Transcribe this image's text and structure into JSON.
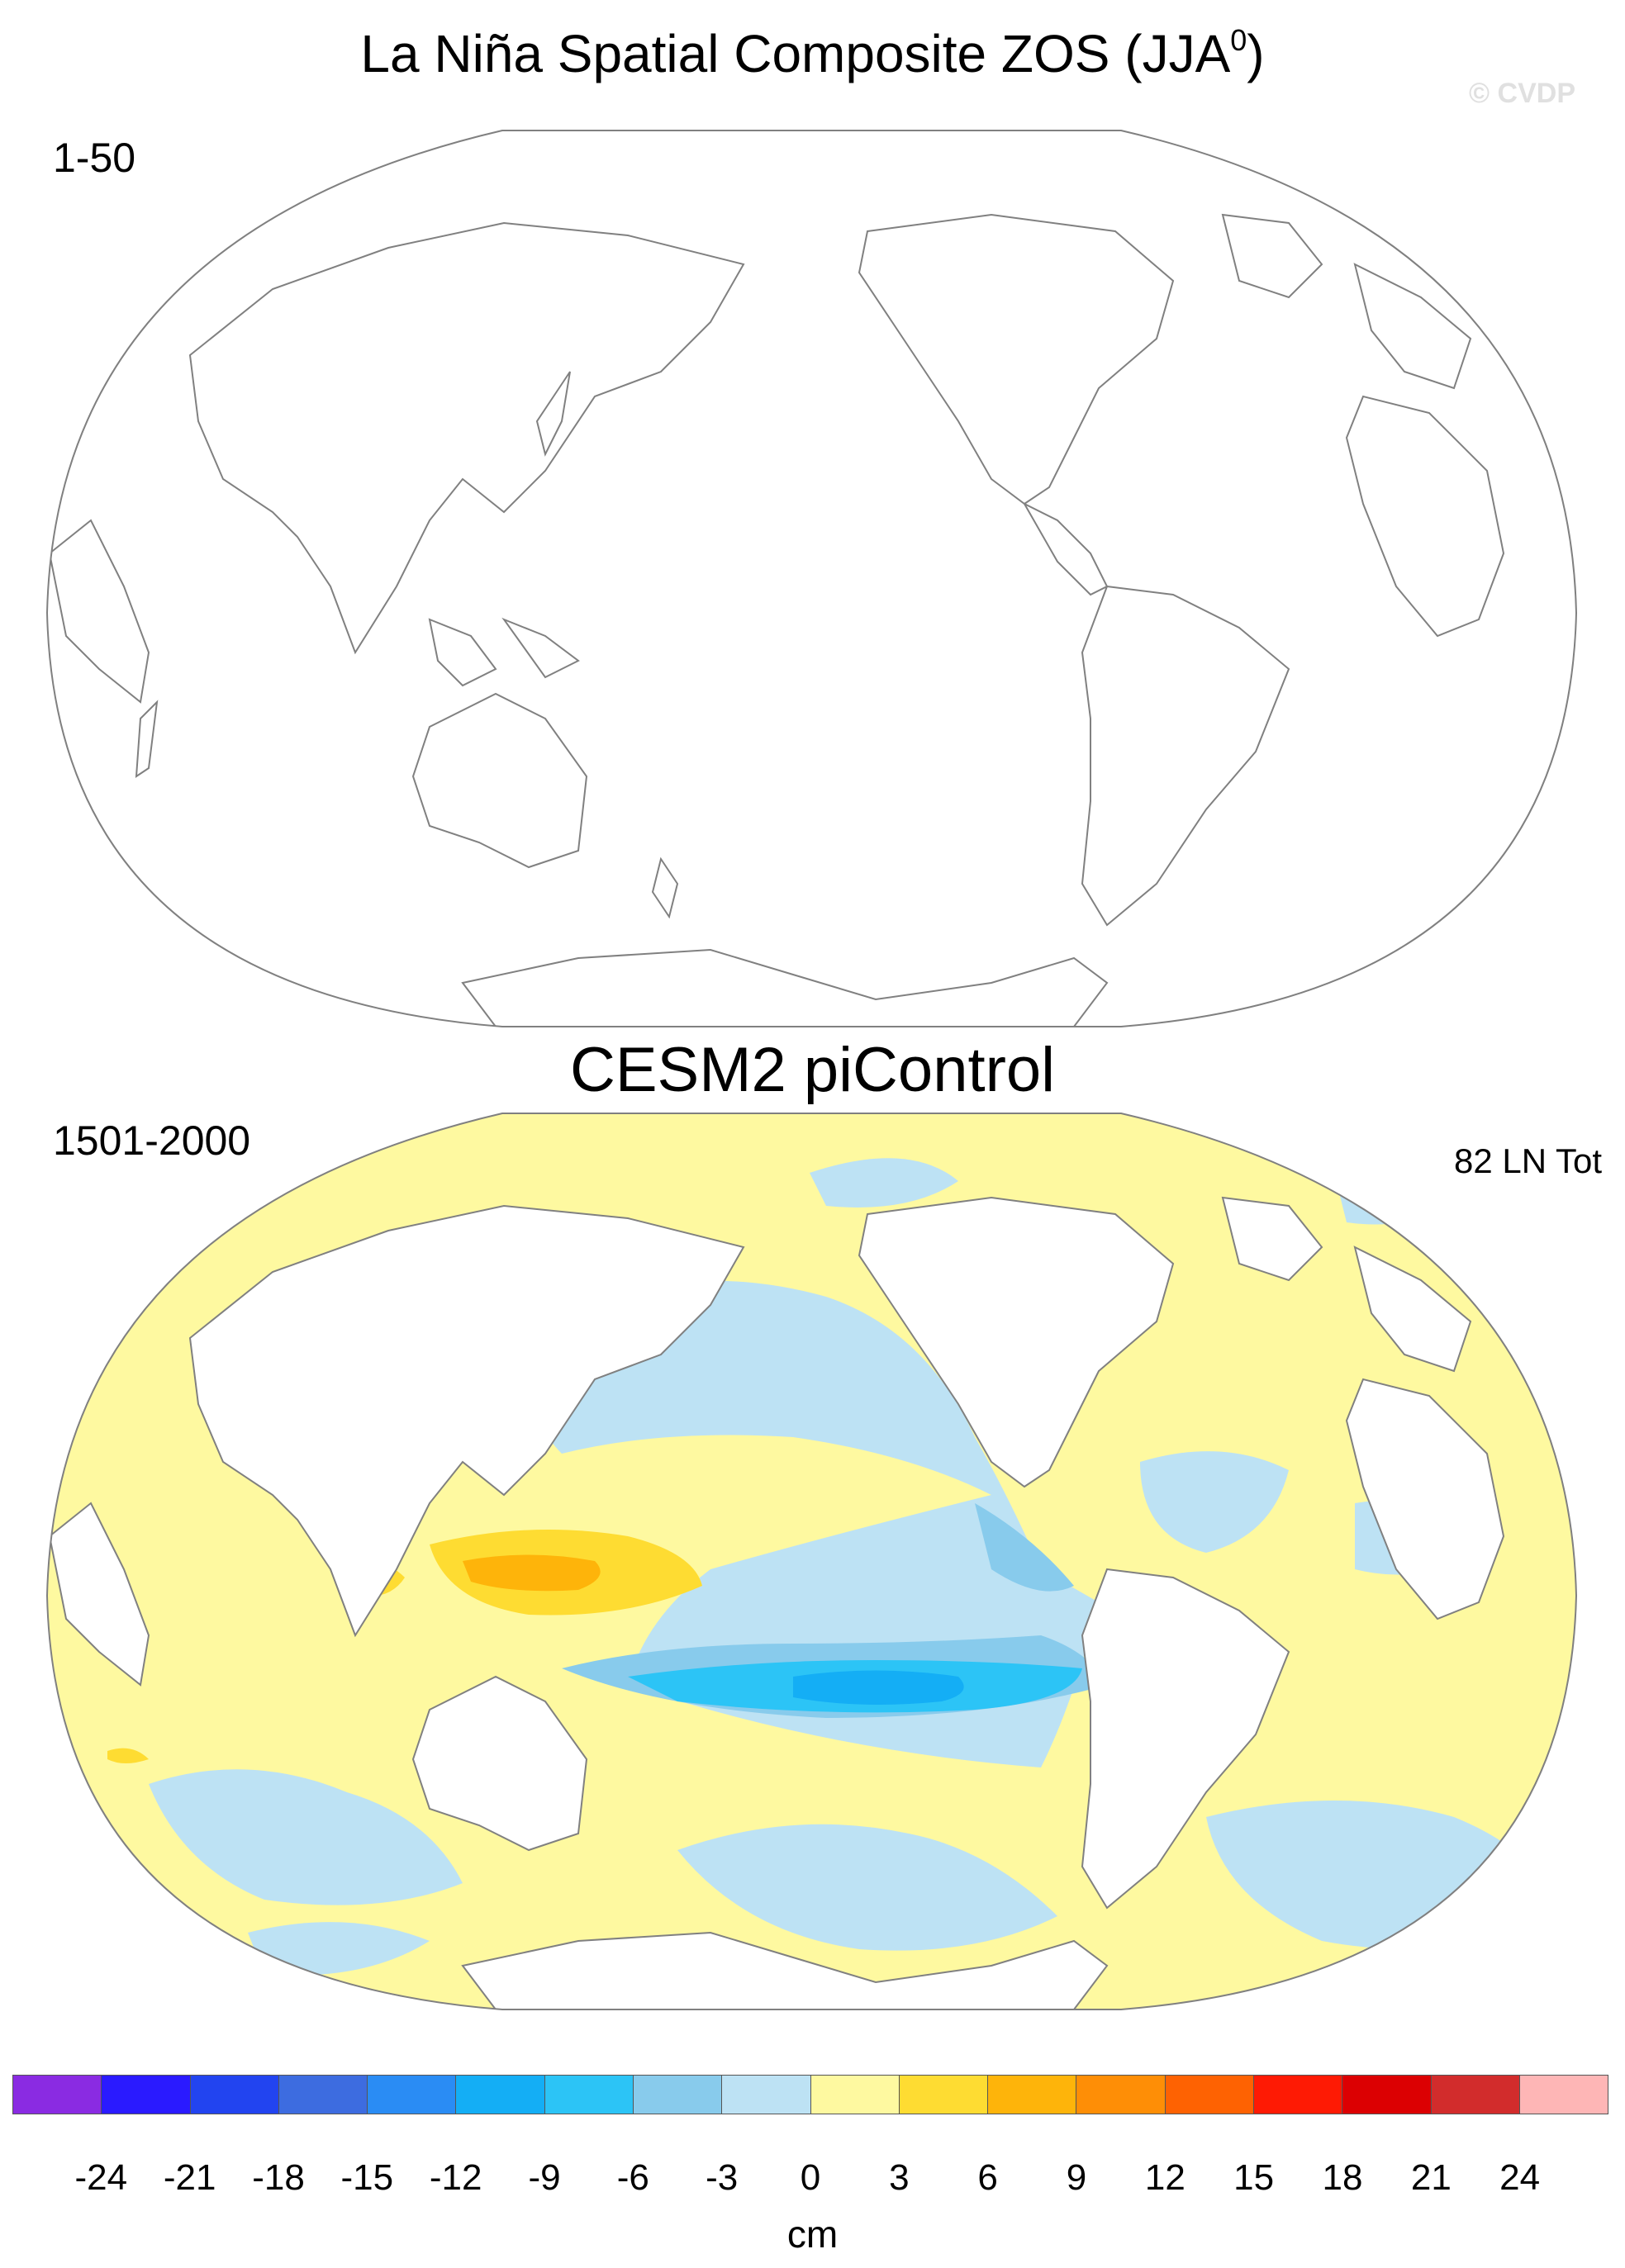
{
  "title": {
    "text": "La Niña Spatial Composite ZOS (JJA",
    "sup": "0",
    "close": ")"
  },
  "watermark": "© CVDP",
  "panels": [
    {
      "period": "1-50",
      "title": "",
      "count": ""
    },
    {
      "period": "1501-2000",
      "title": "CESM2 piControl",
      "count": "82 LN Tot"
    }
  ],
  "colorbar": {
    "units": "cm",
    "ticks": [
      "-24",
      "-21",
      "-18",
      "-15",
      "-12",
      "-9",
      "-6",
      "-3",
      "0",
      "3",
      "6",
      "9",
      "12",
      "15",
      "18",
      "21",
      "24"
    ],
    "colors": [
      "#8a2be2",
      "#2a1aff",
      "#2244f0",
      "#3d6ce0",
      "#2a8cf4",
      "#14aef5",
      "#2cc4f6",
      "#88cbec",
      "#bde2f4",
      "#fef9a0",
      "#fedc32",
      "#feb40a",
      "#fe8e06",
      "#fe6202",
      "#fe1a04",
      "#dc0002",
      "#d22c2c",
      "#feb6b6"
    ]
  },
  "icons": {
    "land": "land-mask",
    "coast": "coastline"
  }
}
